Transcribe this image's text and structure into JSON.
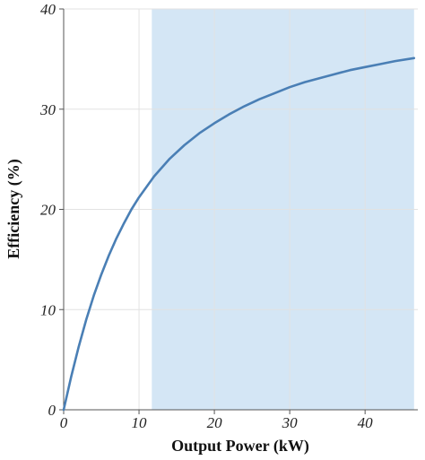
{
  "chart_data": {
    "type": "line",
    "xlabel": "Output Power (kW)",
    "ylabel": "Efficiency (%)",
    "xlim": [
      0,
      47
    ],
    "ylim": [
      0,
      40
    ],
    "x_ticks": [
      0,
      10,
      20,
      30,
      40
    ],
    "y_ticks": [
      0,
      10,
      20,
      30,
      40
    ],
    "grid": true,
    "shaded_region": {
      "x": [
        11.7,
        46.5
      ],
      "color": "#d4e6f5"
    },
    "series": [
      {
        "color": "#4a7fb5",
        "x": [
          0,
          1,
          2,
          3,
          4,
          5,
          6,
          7,
          8,
          9,
          10,
          12,
          14,
          16,
          18,
          20,
          22,
          24,
          26,
          28,
          30,
          32,
          34,
          36,
          38,
          40,
          42,
          44,
          46.5
        ],
        "y": [
          0,
          3.3,
          6.3,
          9.0,
          11.4,
          13.5,
          15.4,
          17.1,
          18.6,
          20.0,
          21.2,
          23.3,
          25.0,
          26.4,
          27.6,
          28.6,
          29.5,
          30.3,
          31.0,
          31.6,
          32.2,
          32.7,
          33.1,
          33.5,
          33.9,
          34.2,
          34.5,
          34.8,
          35.1
        ]
      }
    ]
  }
}
